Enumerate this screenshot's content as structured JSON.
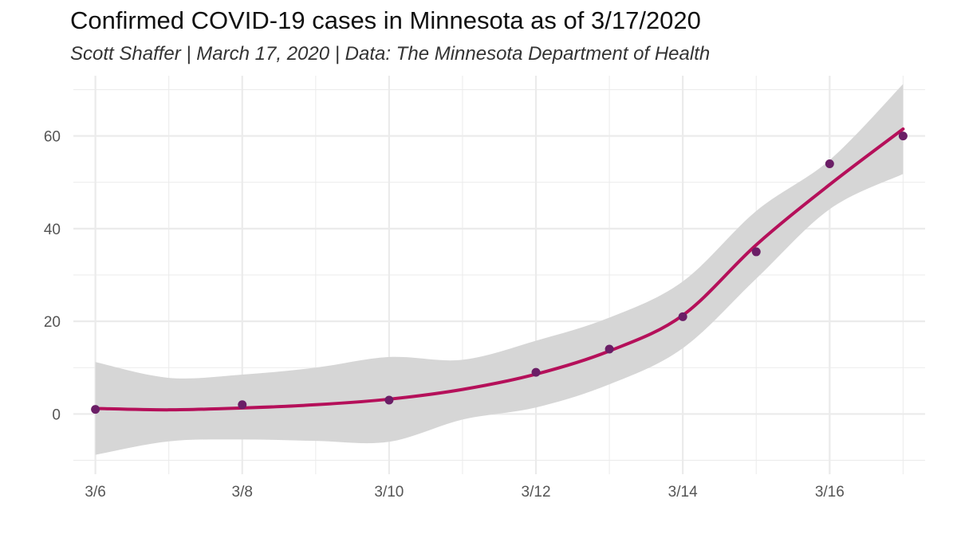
{
  "chart_data": {
    "type": "scatter",
    "title": "Confirmed COVID-19 cases in Minnesota as of 3/17/2020",
    "subtitle": "Scott Shaffer | March 17, 2020 | Data: The Minnesota Department of Health",
    "xlabel": "",
    "ylabel": "",
    "xlim": [
      5.7,
      17.3
    ],
    "ylim": [
      -13,
      73
    ],
    "x_ticks": [
      {
        "value": 6,
        "label": "3/6"
      },
      {
        "value": 8,
        "label": "3/8"
      },
      {
        "value": 10,
        "label": "3/10"
      },
      {
        "value": 12,
        "label": "3/12"
      },
      {
        "value": 14,
        "label": "3/14"
      },
      {
        "value": 16,
        "label": "3/16"
      }
    ],
    "y_ticks": [
      {
        "value": 0,
        "label": "0"
      },
      {
        "value": 20,
        "label": "20"
      },
      {
        "value": 40,
        "label": "40"
      },
      {
        "value": 60,
        "label": "60"
      }
    ],
    "points": [
      {
        "x": 6,
        "y": 1
      },
      {
        "x": 8,
        "y": 2
      },
      {
        "x": 10,
        "y": 3
      },
      {
        "x": 12,
        "y": 9
      },
      {
        "x": 13,
        "y": 14
      },
      {
        "x": 14,
        "y": 21
      },
      {
        "x": 15,
        "y": 35
      },
      {
        "x": 16,
        "y": 54
      },
      {
        "x": 17,
        "y": 60
      }
    ],
    "smooth_fit": [
      {
        "x": 6,
        "y": 1.2,
        "lo": -8.8,
        "hi": 11.2
      },
      {
        "x": 7,
        "y": 0.9,
        "lo": -5.9,
        "hi": 7.8
      },
      {
        "x": 8,
        "y": 1.3,
        "lo": -5.5,
        "hi": 8.5
      },
      {
        "x": 9,
        "y": 2.0,
        "lo": -5.8,
        "hi": 10.0
      },
      {
        "x": 10,
        "y": 3.2,
        "lo": -6.0,
        "hi": 12.3
      },
      {
        "x": 11,
        "y": 5.3,
        "lo": -1.2,
        "hi": 11.7
      },
      {
        "x": 12,
        "y": 8.6,
        "lo": 1.4,
        "hi": 15.8
      },
      {
        "x": 13,
        "y": 13.6,
        "lo": 6.4,
        "hi": 20.8
      },
      {
        "x": 14,
        "y": 21.3,
        "lo": 14.2,
        "hi": 28.6
      },
      {
        "x": 15,
        "y": 36.5,
        "lo": 29.2,
        "hi": 43.8
      },
      {
        "x": 16,
        "y": 49.5,
        "lo": 44.2,
        "hi": 54.8
      },
      {
        "x": 17,
        "y": 61.5,
        "lo": 51.8,
        "hi": 71.2
      }
    ],
    "colors": {
      "points": "#6b1e66",
      "line": "#b5105a",
      "band": "#d6d6d6",
      "grid": "#ebebeb"
    },
    "grid": true,
    "legend": "none"
  }
}
